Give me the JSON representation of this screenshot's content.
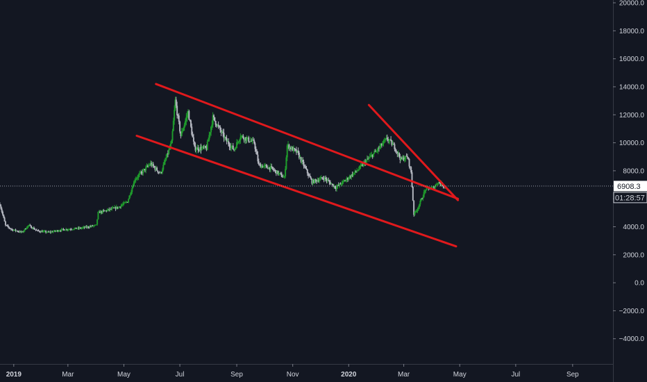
{
  "colors": {
    "background": "#131722",
    "axis_text": "#d1d4dc",
    "up": "#26a69a",
    "up_fill": "#1f9b2c",
    "down": "#b2b5be",
    "trendline": "#e0191c",
    "crosshair": "#9aa0ad"
  },
  "chart_data": {
    "type": "candlestick",
    "y_axis": {
      "ticks": [
        20000,
        18000,
        16000,
        14000,
        12000,
        10000,
        8000,
        6000,
        4000,
        2000,
        0,
        -2000,
        -4000
      ],
      "tick_labels": [
        "20000.0",
        "18000.0",
        "16000.0",
        "14000.0",
        "12000.0",
        "10000.0",
        "8000.0",
        "6000.0",
        "4000.0",
        "2000.0",
        "0.0",
        "−2000.0",
        "−4000.0"
      ],
      "ylim": [
        -5800,
        20200
      ]
    },
    "x_axis": {
      "tick_labels": [
        "2019",
        "Mar",
        "May",
        "Jul",
        "Sep",
        "Nov",
        "2020",
        "Mar",
        "May",
        "Jul",
        "Sep"
      ],
      "tick_dates": [
        "2019-01-01",
        "2019-03-01",
        "2019-05-01",
        "2019-07-01",
        "2019-09-01",
        "2019-11-01",
        "2020-01-01",
        "2020-03-01",
        "2020-05-01",
        "2020-07-01",
        "2020-09-01"
      ],
      "range": [
        "2018-12-17",
        "2020-10-15"
      ]
    },
    "current_price": {
      "value": 6908.3,
      "label": "6908.3"
    },
    "countdown": "01:28:57",
    "anchors": [
      [
        "2018-12-17",
        5600
      ],
      [
        "2018-12-23",
        4100
      ],
      [
        "2018-12-30",
        3800
      ],
      [
        "2019-01-10",
        3600
      ],
      [
        "2019-01-17",
        4100
      ],
      [
        "2019-01-27",
        3700
      ],
      [
        "2019-02-08",
        3600
      ],
      [
        "2019-02-24",
        3800
      ],
      [
        "2019-03-15",
        3900
      ],
      [
        "2019-04-01",
        4100
      ],
      [
        "2019-04-03",
        5000
      ],
      [
        "2019-04-25",
        5400
      ],
      [
        "2019-05-05",
        5800
      ],
      [
        "2019-05-13",
        7400
      ],
      [
        "2019-05-30",
        8500
      ],
      [
        "2019-06-10",
        7800
      ],
      [
        "2019-06-22",
        10000
      ],
      [
        "2019-06-26",
        13000
      ],
      [
        "2019-07-02",
        10500
      ],
      [
        "2019-07-10",
        12200
      ],
      [
        "2019-07-17",
        9600
      ],
      [
        "2019-07-30",
        9600
      ],
      [
        "2019-08-06",
        11800
      ],
      [
        "2019-08-20",
        10200
      ],
      [
        "2019-08-29",
        9500
      ],
      [
        "2019-09-05",
        10500
      ],
      [
        "2019-09-20",
        10000
      ],
      [
        "2019-09-25",
        8400
      ],
      [
        "2019-10-08",
        8200
      ],
      [
        "2019-10-23",
        7500
      ],
      [
        "2019-10-26",
        9800
      ],
      [
        "2019-11-06",
        9300
      ],
      [
        "2019-11-22",
        7200
      ],
      [
        "2019-12-05",
        7500
      ],
      [
        "2019-12-18",
        6800
      ],
      [
        "2019-12-28",
        7300
      ],
      [
        "2020-01-10",
        8000
      ],
      [
        "2020-01-20",
        8700
      ],
      [
        "2020-01-31",
        9400
      ],
      [
        "2020-02-12",
        10300
      ],
      [
        "2020-02-20",
        9700
      ],
      [
        "2020-02-27",
        8800
      ],
      [
        "2020-03-05",
        9000
      ],
      [
        "2020-03-09",
        7900
      ],
      [
        "2020-03-12",
        4900
      ],
      [
        "2020-03-16",
        5300
      ],
      [
        "2020-03-25",
        6700
      ],
      [
        "2020-04-03",
        6800
      ],
      [
        "2020-04-07",
        7200
      ],
      [
        "2020-04-15",
        6900
      ]
    ],
    "trendlines": [
      {
        "start": [
          "2019-06-05",
          14200
        ],
        "end": [
          "2020-04-29",
          6000
        ]
      },
      {
        "start": [
          "2019-05-15",
          10500
        ],
        "end": [
          "2020-04-27",
          2600
        ]
      },
      {
        "start": [
          "2020-01-23",
          12700
        ],
        "end": [
          "2020-04-29",
          5900
        ]
      }
    ]
  }
}
